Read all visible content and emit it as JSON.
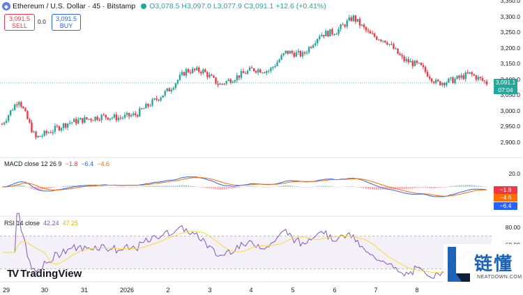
{
  "header": {
    "symbol": "Ethereum / U.S. Dollar · 45 · Bitstamp",
    "o": "O3,078.5",
    "h": "H3,097.0",
    "l": "L3,077.9",
    "c": "C3,091.1",
    "change": "+12.6 (+0.41%)",
    "sell_price": "3,091.5",
    "sell_label": "SELL",
    "spread": "0.0",
    "buy_price": "3,091.5",
    "buy_label": "BUY"
  },
  "macd_label": {
    "name": "MACD close 12 26 9",
    "v1": "−1.8",
    "v2": "−6.4",
    "v3": "−4.6"
  },
  "rsi_label": {
    "name": "RSI 14 close",
    "v1": "42.24",
    "v2": "47.25"
  },
  "price_axis": [
    "3,350.0",
    "3,300.0",
    "3,250.0",
    "3,200.0",
    "3,150.0",
    "3,100.0",
    "3,050.0",
    "3,000.0",
    "2,950.0",
    "2,900.0"
  ],
  "price_tag": {
    "price": "3,091.1",
    "time": "07:04"
  },
  "macd_axis": {
    "top": "20.0",
    "t1": "−1.8",
    "t2": "−4.6",
    "t3": "−6.4"
  },
  "rsi_axis": {
    "top": "80.00",
    "mid": "60.00"
  },
  "x_labels": [
    "29",
    "30",
    "31",
    "2026",
    "2",
    "3",
    "4",
    "5",
    "6",
    "7",
    "8"
  ],
  "brand": "TradingView",
  "watermark": {
    "cn": "链懂",
    "en": "NEATDOWN.COM"
  },
  "colors": {
    "up": "#26a69a",
    "down": "#f23645",
    "macd": "#2962ff",
    "signal": "#ff6d00",
    "rsi": "#7e57c2",
    "rsi_ma": "#fdd835"
  },
  "chart_data": {
    "type": "candlestick",
    "title": "Ethereum / U.S. Dollar · 45 · Bitstamp",
    "x_ticks": [
      "29",
      "30",
      "31",
      "2026",
      "2",
      "3",
      "4",
      "5",
      "6",
      "7",
      "8"
    ],
    "price_range": [
      2880,
      3355
    ],
    "price_series": [
      [
        "29",
        2960
      ],
      [
        "29.5",
        3040
      ],
      [
        "30",
        2915
      ],
      [
        "30.5",
        2940
      ],
      [
        "31",
        2965
      ],
      [
        "31.5",
        2975
      ],
      [
        "2026",
        2985
      ],
      [
        "1.5",
        2980
      ],
      [
        "2",
        2990
      ],
      [
        "2.5",
        3030
      ],
      [
        "2.8",
        3070
      ],
      [
        "3",
        3130
      ],
      [
        "3.3",
        3130
      ],
      [
        "3.5",
        3085
      ],
      [
        "4",
        3110
      ],
      [
        "4.5",
        3135
      ],
      [
        "5",
        3130
      ],
      [
        "5.4",
        3190
      ],
      [
        "5.7",
        3180
      ],
      [
        "6",
        3245
      ],
      [
        "6.4",
        3255
      ],
      [
        "6.7",
        3300
      ],
      [
        "7",
        3245
      ],
      [
        "7.4",
        3225
      ],
      [
        "7.7",
        3165
      ],
      [
        "8",
        3145
      ],
      [
        "8.3",
        3090
      ],
      [
        "8.6",
        3100
      ],
      [
        "8.9",
        3120
      ],
      [
        "9.2",
        3091.1
      ]
    ],
    "last_price": 3091.1,
    "macd": {
      "params": "12 26 9",
      "macd": -6.4,
      "signal": -4.6,
      "hist": -1.8
    },
    "rsi": {
      "length": 14,
      "value": 42.24,
      "ma": 47.25,
      "levels": [
        70,
        30
      ]
    }
  }
}
